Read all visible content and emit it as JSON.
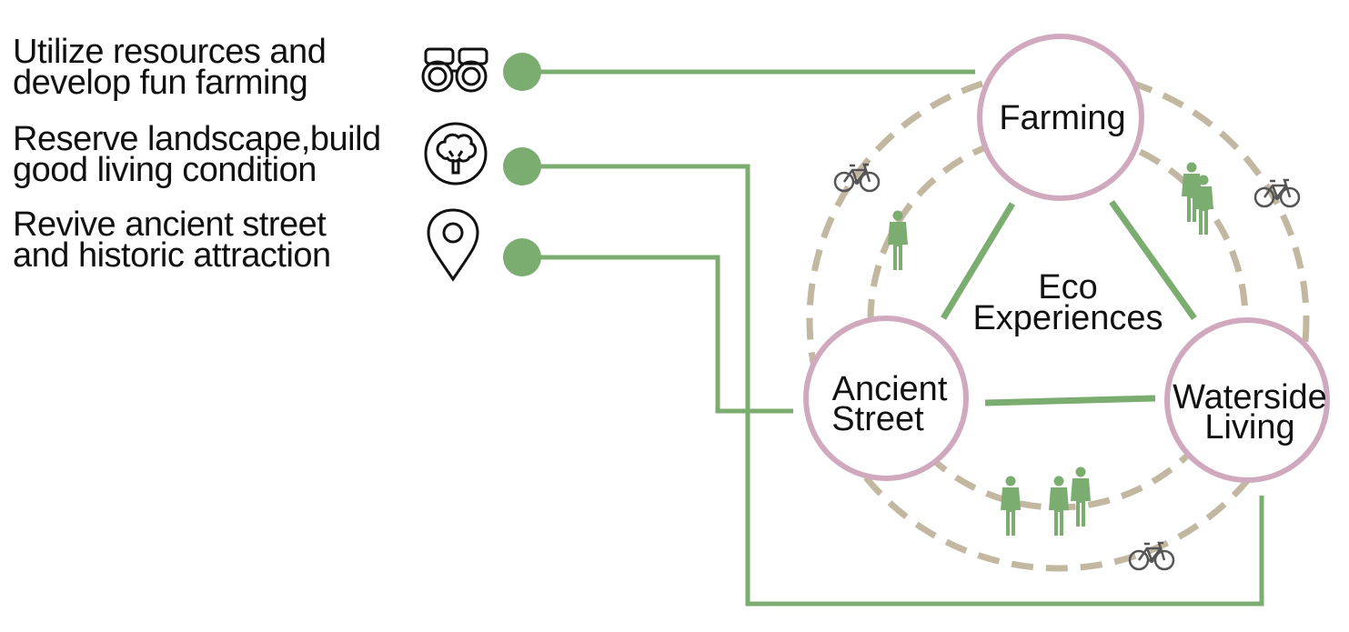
{
  "goals": [
    {
      "line1": "Utilize resources and",
      "line2": "develop fun farming",
      "icon": "binoculars-icon"
    },
    {
      "line1": "Reserve landscape,build",
      "line2": "good living condition",
      "icon": "tree-icon"
    },
    {
      "line1": "Revive ancient street",
      "line2": "and historic attraction",
      "icon": "map-pin-icon"
    }
  ],
  "nodes": {
    "farming": "Farming",
    "ancient_line1": "Ancient",
    "ancient_line2": "Street",
    "waterside_line1": "Waterside",
    "waterside_line2": "Living"
  },
  "center": {
    "line1": "Eco",
    "line2": "Experiences"
  },
  "colors": {
    "connector": "#7bad70",
    "node_ring": "#d1a9bf",
    "dashed_ring": "#c2b7a0",
    "people": "#7bad70",
    "bike": "#555555"
  }
}
